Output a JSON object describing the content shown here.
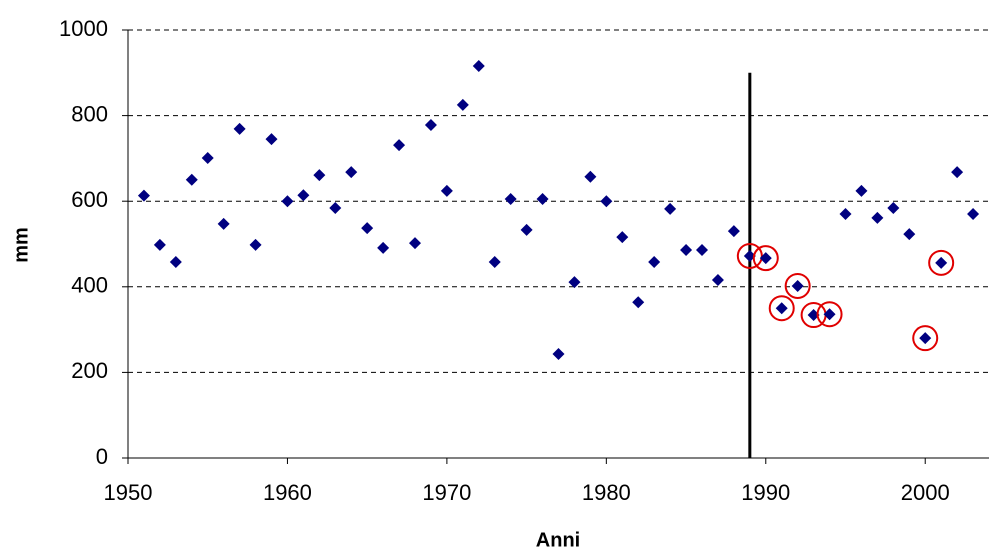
{
  "chart_data": {
    "type": "scatter",
    "x_label": "Anni",
    "y_label": "mm",
    "x": [
      1951,
      1952,
      1953,
      1954,
      1955,
      1956,
      1957,
      1958,
      1959,
      1960,
      1961,
      1962,
      1963,
      1964,
      1965,
      1966,
      1967,
      1968,
      1969,
      1970,
      1971,
      1972,
      1973,
      1974,
      1975,
      1976,
      1977,
      1978,
      1979,
      1980,
      1981,
      1982,
      1983,
      1984,
      1985,
      1986,
      1987,
      1988,
      1989,
      1990,
      1991,
      1992,
      1993,
      1994,
      1995,
      1996,
      1997,
      1998,
      1999,
      2000,
      2001,
      2002,
      2003
    ],
    "values": [
      613,
      498,
      458,
      650,
      701,
      547,
      769,
      498,
      745,
      600,
      614,
      661,
      584,
      668,
      537,
      491,
      731,
      502,
      778,
      624,
      825,
      916,
      458,
      605,
      533,
      605,
      243,
      411,
      657,
      600,
      516,
      364,
      458,
      582,
      486,
      486,
      416,
      530,
      472,
      467,
      350,
      402,
      334,
      336,
      570,
      624,
      561,
      584,
      523,
      280,
      456,
      668,
      570
    ],
    "color": "#000080",
    "highlight_color": "#e00000",
    "highlighted_x": [
      1989,
      1990,
      1991,
      1992,
      1993,
      1994,
      2000,
      2001
    ],
    "vline": {
      "x": 1989,
      "y": [
        0,
        900
      ],
      "color": "#000000"
    },
    "xlim": [
      1950,
      2004
    ],
    "xticks": [
      1950,
      1960,
      1970,
      1980,
      1990,
      2000
    ],
    "ylim": [
      0,
      1000
    ],
    "yticks": [
      0,
      200,
      400,
      600,
      800,
      1000
    ],
    "grid": true
  }
}
